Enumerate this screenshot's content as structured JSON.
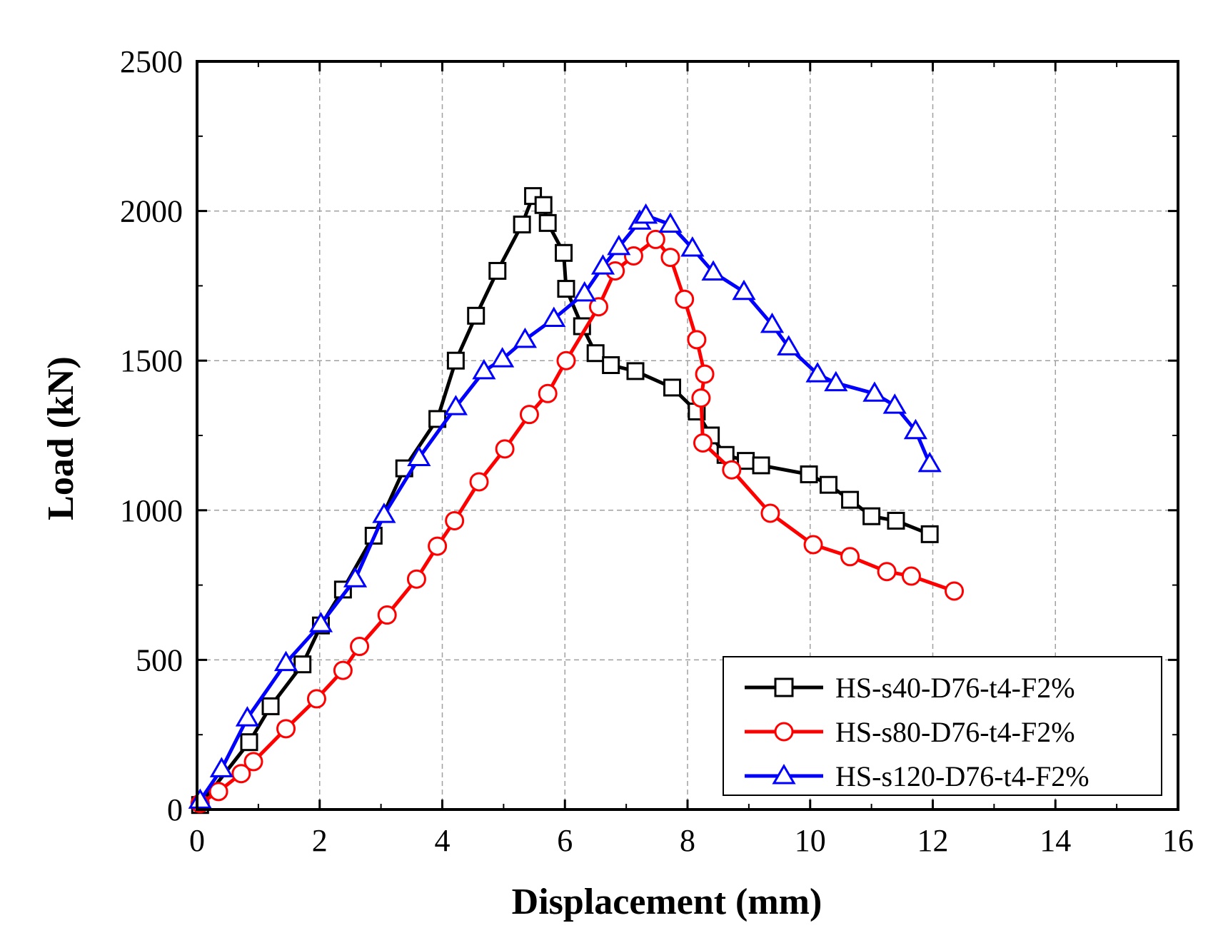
{
  "chart_data": {
    "type": "line",
    "title": "",
    "xlabel": "Displacement (mm)",
    "ylabel": "Load (kN)",
    "xlim": [
      0,
      16
    ],
    "ylim": [
      0,
      2500
    ],
    "xticks": [
      0,
      2,
      4,
      6,
      8,
      10,
      12,
      14,
      16
    ],
    "yticks": [
      0,
      500,
      1000,
      1500,
      2000,
      2500
    ],
    "xtick_labels": [
      "0",
      "2",
      "4",
      "6",
      "8",
      "10",
      "12",
      "14",
      "16"
    ],
    "ytick_labels": [
      "0",
      "500",
      "1000",
      "1500",
      "2000",
      "2500"
    ],
    "grid": true,
    "legend_position": "bottom-right",
    "series": [
      {
        "name": "HS-s40-D76-t4-F2%",
        "color": "#000000",
        "marker": "square",
        "x": [
          0.05,
          0.85,
          1.2,
          1.72,
          2.02,
          2.38,
          2.88,
          3.38,
          3.92,
          4.22,
          4.55,
          4.9,
          5.3,
          5.48,
          5.65,
          5.72,
          5.98,
          6.02,
          6.28,
          6.5,
          6.75,
          7.15,
          7.75,
          8.15,
          8.38,
          8.62,
          8.95,
          9.2,
          9.98,
          10.3,
          10.65,
          11.0,
          11.4,
          11.95
        ],
        "y": [
          15,
          225,
          345,
          485,
          615,
          735,
          915,
          1140,
          1305,
          1500,
          1650,
          1800,
          1955,
          2050,
          2020,
          1960,
          1860,
          1740,
          1615,
          1525,
          1485,
          1465,
          1410,
          1330,
          1250,
          1185,
          1165,
          1150,
          1120,
          1085,
          1035,
          980,
          965,
          920
        ]
      },
      {
        "name": "HS-s80-D76-t4-F2%",
        "color": "#ff0000",
        "marker": "circle",
        "x": [
          0.05,
          0.35,
          0.72,
          0.92,
          1.45,
          1.95,
          2.38,
          2.65,
          3.1,
          3.58,
          3.92,
          4.2,
          4.6,
          5.02,
          5.42,
          5.72,
          6.02,
          6.55,
          6.82,
          7.12,
          7.48,
          7.72,
          7.95,
          8.15,
          8.28,
          8.22,
          8.25,
          8.72,
          9.35,
          10.05,
          10.65,
          11.25,
          11.65,
          12.35
        ],
        "y": [
          20,
          60,
          120,
          160,
          270,
          370,
          465,
          545,
          650,
          770,
          880,
          965,
          1095,
          1205,
          1320,
          1390,
          1500,
          1680,
          1800,
          1850,
          1905,
          1845,
          1705,
          1570,
          1455,
          1375,
          1225,
          1135,
          990,
          885,
          845,
          795,
          780,
          730
        ]
      },
      {
        "name": "HS-s120-D76-t4-F2%",
        "color": "#0000ff",
        "marker": "triangle",
        "x": [
          0.05,
          0.4,
          0.82,
          1.45,
          2.02,
          2.58,
          3.05,
          3.62,
          4.22,
          4.68,
          4.98,
          5.35,
          5.82,
          6.32,
          6.62,
          6.88,
          7.22,
          7.32,
          7.72,
          8.08,
          8.42,
          8.92,
          9.38,
          9.65,
          10.12,
          10.42,
          11.05,
          11.38,
          11.72,
          11.95
        ],
        "y": [
          30,
          135,
          305,
          490,
          620,
          770,
          985,
          1175,
          1345,
          1465,
          1505,
          1570,
          1640,
          1725,
          1815,
          1880,
          1965,
          1985,
          1955,
          1875,
          1795,
          1730,
          1620,
          1545,
          1455,
          1425,
          1390,
          1350,
          1265,
          1155
        ]
      }
    ]
  }
}
